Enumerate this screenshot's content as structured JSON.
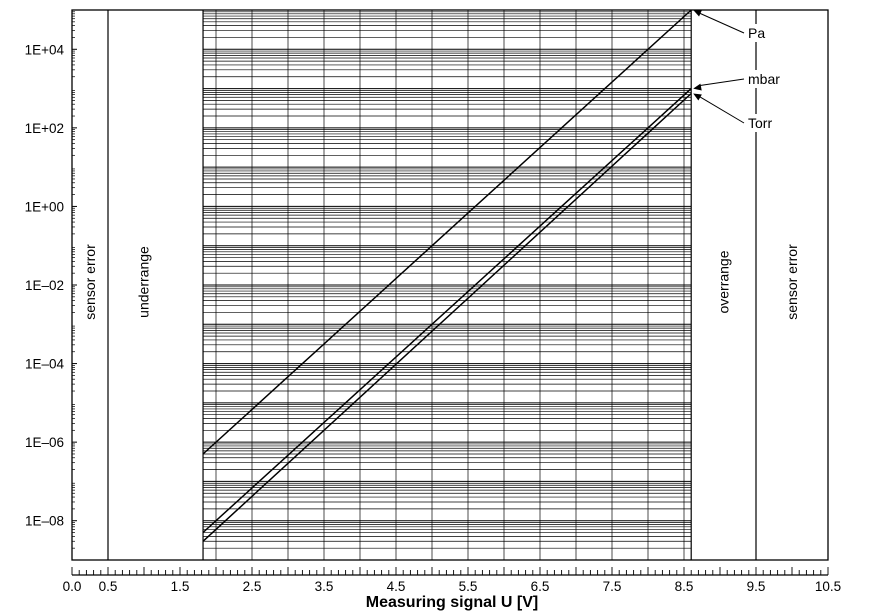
{
  "chart_data": {
    "type": "line",
    "xlabel": "Measuring signal U [V]",
    "xlim": [
      0.0,
      10.5
    ],
    "x_ticks": [
      "0.0",
      "0.5",
      "1.5",
      "2.5",
      "3.5",
      "4.5",
      "5.5",
      "6.5",
      "7.5",
      "8.5",
      "9.5",
      "10.5"
    ],
    "x_tick_values": [
      0.0,
      0.5,
      1.5,
      2.5,
      3.5,
      4.5,
      5.5,
      6.5,
      7.5,
      8.5,
      9.5,
      10.5
    ],
    "y_scale": "log",
    "ylim": [
      1e-09,
      100000.0
    ],
    "y_ticks": [
      "1E+04",
      "1E+02",
      "1E+00",
      "1E–02",
      "1E–04",
      "1E–06",
      "1E–08"
    ],
    "y_tick_values": [
      10000.0,
      100.0,
      1.0,
      0.01,
      0.0001,
      1e-06,
      1e-08
    ],
    "grid": "log grid in measuring range",
    "regions": [
      {
        "label": "sensor error",
        "x_from": 0.0,
        "x_to": 0.5
      },
      {
        "label": "underrange",
        "x_from": 0.5,
        "x_to": 1.82
      },
      {
        "label": "overrange",
        "x_from": 8.6,
        "x_to": 9.5
      },
      {
        "label": "sensor error",
        "x_from": 9.5,
        "x_to": 10.5
      }
    ],
    "series": [
      {
        "name": "Pa",
        "points": [
          [
            1.82,
            5e-07
          ],
          [
            8.6,
            100000.0
          ]
        ]
      },
      {
        "name": "mbar",
        "points": [
          [
            1.82,
            5e-09
          ],
          [
            8.6,
            1000.0
          ]
        ]
      },
      {
        "name": "Torr",
        "points": [
          [
            1.82,
            3e-09
          ],
          [
            8.6,
            750.0
          ]
        ]
      }
    ]
  }
}
